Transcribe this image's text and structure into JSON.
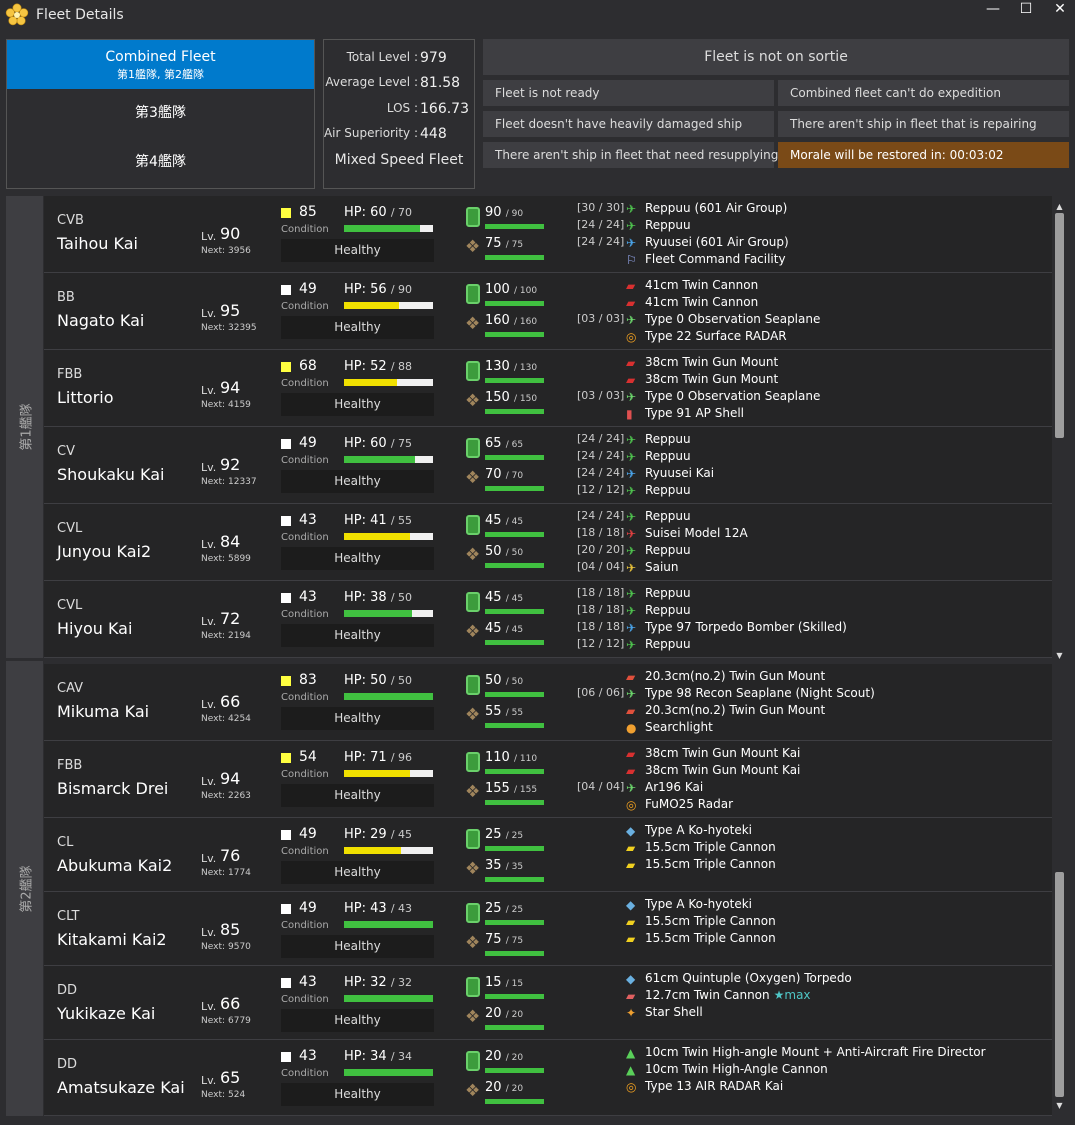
{
  "window": {
    "title": "Fleet Details"
  },
  "fleet_tabs": [
    {
      "label": "Combined Fleet",
      "sub": "第1艦隊, 第2艦隊"
    },
    {
      "label": "第3艦隊"
    },
    {
      "label": "第4艦隊"
    }
  ],
  "stats": {
    "total_level_label": "Total Level :",
    "total_level": "979",
    "avg_level_label": "Average Level :",
    "avg_level": "81.58",
    "los_label": "LOS :",
    "los": "166.73",
    "air_label": "Air Superiority :",
    "air": "448",
    "speed": "Mixed Speed Fleet"
  },
  "status": {
    "sortie": "Fleet is not on sortie",
    "badges": [
      "Fleet is not ready",
      "Combined fleet can't do expedition",
      "Fleet doesn't have heavily damaged ship",
      "There aren't ship in fleet that is repairing",
      "There aren't ship in fleet that need resupplying",
      "Morale will be restored in: 00:03:02"
    ]
  },
  "fleet_labels": [
    "第1艦隊",
    "第2艦隊"
  ],
  "labels": {
    "lv": "Lv.",
    "next": "Next:",
    "condition": "Condition",
    "hp": "HP:"
  },
  "colors": {
    "accent": "#007acc",
    "hp_green": "#40c040",
    "hp_yellow": "#f0e000",
    "morale_high": "#ffff40",
    "morale_normal": "#ffffff",
    "warn": "#7a4a17"
  },
  "ships": [
    {
      "type": "CVB",
      "name": "Taihou Kai",
      "lv": "90",
      "next": "3956",
      "morale": "85",
      "morale_color": "#ffff40",
      "hp": "60",
      "hp_max": "70",
      "hp_pct": 0.857,
      "hp_color": "#40c040",
      "status": "Healthy",
      "fuel": "90",
      "fuel_max": "90",
      "ammo": "75",
      "ammo_max": "75",
      "equip": [
        {
          "slot": "[30 / 30]",
          "icon": "fighter-icon",
          "name": "Reppuu (601 Air Group)"
        },
        {
          "slot": "[24 / 24]",
          "icon": "fighter-icon",
          "name": "Reppuu"
        },
        {
          "slot": "[24 / 24]",
          "icon": "torpedo-bomber-icon",
          "name": "Ryuusei (601 Air Group)"
        },
        {
          "slot": "",
          "icon": "command-facility-icon",
          "name": "Fleet Command Facility"
        }
      ]
    },
    {
      "type": "BB",
      "name": "Nagato Kai",
      "lv": "95",
      "next": "32395",
      "morale": "49",
      "morale_color": "#ffffff",
      "hp": "56",
      "hp_max": "90",
      "hp_pct": 0.622,
      "hp_color": "#f0e000",
      "status": "Healthy",
      "fuel": "100",
      "fuel_max": "100",
      "ammo": "160",
      "ammo_max": "160",
      "equip": [
        {
          "slot": "",
          "icon": "main-gun-icon",
          "name": "41cm Twin Cannon"
        },
        {
          "slot": "",
          "icon": "main-gun-icon",
          "name": "41cm Twin Cannon"
        },
        {
          "slot": "[03 / 03]",
          "icon": "seaplane-icon",
          "name": "Type 0 Observation Seaplane"
        },
        {
          "slot": "",
          "icon": "radar-icon",
          "name": "Type 22 Surface RADAR"
        }
      ]
    },
    {
      "type": "FBB",
      "name": "Littorio",
      "lv": "94",
      "next": "4159",
      "morale": "68",
      "morale_color": "#ffff40",
      "hp": "52",
      "hp_max": "88",
      "hp_pct": 0.591,
      "hp_color": "#f0e000",
      "status": "Healthy",
      "fuel": "130",
      "fuel_max": "130",
      "ammo": "150",
      "ammo_max": "150",
      "equip": [
        {
          "slot": "",
          "icon": "main-gun-icon",
          "name": "38cm Twin Gun Mount"
        },
        {
          "slot": "",
          "icon": "main-gun-icon",
          "name": "38cm Twin Gun Mount"
        },
        {
          "slot": "[03 / 03]",
          "icon": "seaplane-icon",
          "name": "Type 0 Observation Seaplane"
        },
        {
          "slot": "",
          "icon": "ap-shell-icon",
          "name": "Type 91 AP Shell"
        }
      ]
    },
    {
      "type": "CV",
      "name": "Shoukaku Kai",
      "lv": "92",
      "next": "12337",
      "morale": "49",
      "morale_color": "#ffffff",
      "hp": "60",
      "hp_max": "75",
      "hp_pct": 0.8,
      "hp_color": "#40c040",
      "status": "Healthy",
      "fuel": "65",
      "fuel_max": "65",
      "ammo": "70",
      "ammo_max": "70",
      "equip": [
        {
          "slot": "[24 / 24]",
          "icon": "fighter-icon",
          "name": "Reppuu"
        },
        {
          "slot": "[24 / 24]",
          "icon": "fighter-icon",
          "name": "Reppuu"
        },
        {
          "slot": "[24 / 24]",
          "icon": "torpedo-bomber-icon",
          "name": "Ryuusei Kai"
        },
        {
          "slot": "[12 / 12]",
          "icon": "fighter-icon",
          "name": "Reppuu"
        }
      ]
    },
    {
      "type": "CVL",
      "name": "Junyou Kai2",
      "lv": "84",
      "next": "5899",
      "morale": "43",
      "morale_color": "#ffffff",
      "hp": "41",
      "hp_max": "55",
      "hp_pct": 0.745,
      "hp_color": "#f0e000",
      "status": "Healthy",
      "fuel": "45",
      "fuel_max": "45",
      "ammo": "50",
      "ammo_max": "50",
      "equip": [
        {
          "slot": "[24 / 24]",
          "icon": "fighter-icon",
          "name": "Reppuu"
        },
        {
          "slot": "[18 / 18]",
          "icon": "dive-bomber-icon",
          "name": "Suisei Model 12A"
        },
        {
          "slot": "[20 / 20]",
          "icon": "fighter-icon",
          "name": "Reppuu"
        },
        {
          "slot": "[04 / 04]",
          "icon": "recon-plane-icon",
          "name": "Saiun"
        }
      ]
    },
    {
      "type": "CVL",
      "name": "Hiyou Kai",
      "lv": "72",
      "next": "2194",
      "morale": "43",
      "morale_color": "#ffffff",
      "hp": "38",
      "hp_max": "50",
      "hp_pct": 0.76,
      "hp_color": "#40c040",
      "status": "Healthy",
      "fuel": "45",
      "fuel_max": "45",
      "ammo": "45",
      "ammo_max": "45",
      "equip": [
        {
          "slot": "[18 / 18]",
          "icon": "fighter-icon",
          "name": "Reppuu"
        },
        {
          "slot": "[18 / 18]",
          "icon": "fighter-icon",
          "name": "Reppuu"
        },
        {
          "slot": "[18 / 18]",
          "icon": "torpedo-bomber-icon",
          "name": "Type 97 Torpedo Bomber (Skilled)"
        },
        {
          "slot": "[12 / 12]",
          "icon": "fighter-icon",
          "name": "Reppuu"
        }
      ]
    },
    {
      "type": "CAV",
      "name": "Mikuma Kai",
      "lv": "66",
      "next": "4254",
      "morale": "83",
      "morale_color": "#ffff40",
      "hp": "50",
      "hp_max": "50",
      "hp_pct": 1.0,
      "hp_color": "#40c040",
      "status": "Healthy",
      "fuel": "50",
      "fuel_max": "50",
      "ammo": "55",
      "ammo_max": "55",
      "equip": [
        {
          "slot": "",
          "icon": "medium-gun-icon",
          "name": "20.3cm(no.2) Twin Gun Mount"
        },
        {
          "slot": "[06 / 06]",
          "icon": "seaplane-icon",
          "name": "Type 98 Recon Seaplane (Night Scout)"
        },
        {
          "slot": "",
          "icon": "medium-gun-icon",
          "name": "20.3cm(no.2) Twin Gun Mount"
        },
        {
          "slot": "",
          "icon": "searchlight-icon",
          "name": "Searchlight"
        }
      ]
    },
    {
      "type": "FBB",
      "name": "Bismarck Drei",
      "lv": "94",
      "next": "2263",
      "morale": "54",
      "morale_color": "#ffff40",
      "hp": "71",
      "hp_max": "96",
      "hp_pct": 0.74,
      "hp_color": "#f0e000",
      "status": "Healthy",
      "fuel": "110",
      "fuel_max": "110",
      "ammo": "155",
      "ammo_max": "155",
      "equip": [
        {
          "slot": "",
          "icon": "main-gun-icon",
          "name": "38cm Twin Gun Mount Kai"
        },
        {
          "slot": "",
          "icon": "main-gun-icon",
          "name": "38cm Twin Gun Mount Kai"
        },
        {
          "slot": "[04 / 04]",
          "icon": "seaplane-icon",
          "name": "Ar196 Kai"
        },
        {
          "slot": "",
          "icon": "radar-icon",
          "name": "FuMO25 Radar"
        }
      ]
    },
    {
      "type": "CL",
      "name": "Abukuma Kai2",
      "lv": "76",
      "next": "1774",
      "morale": "49",
      "morale_color": "#ffffff",
      "hp": "29",
      "hp_max": "45",
      "hp_pct": 0.644,
      "hp_color": "#f0e000",
      "status": "Healthy",
      "fuel": "25",
      "fuel_max": "25",
      "ammo": "35",
      "ammo_max": "35",
      "equip": [
        {
          "slot": "",
          "icon": "midget-sub-icon",
          "name": "Type A Ko-hyoteki"
        },
        {
          "slot": "",
          "icon": "secondary-gun-icon",
          "name": "15.5cm Triple Cannon"
        },
        {
          "slot": "",
          "icon": "secondary-gun-icon",
          "name": "15.5cm Triple Cannon"
        }
      ]
    },
    {
      "type": "CLT",
      "name": "Kitakami Kai2",
      "lv": "85",
      "next": "9570",
      "morale": "49",
      "morale_color": "#ffffff",
      "hp": "43",
      "hp_max": "43",
      "hp_pct": 1.0,
      "hp_color": "#40c040",
      "status": "Healthy",
      "fuel": "25",
      "fuel_max": "25",
      "ammo": "75",
      "ammo_max": "75",
      "equip": [
        {
          "slot": "",
          "icon": "midget-sub-icon",
          "name": "Type A Ko-hyoteki"
        },
        {
          "slot": "",
          "icon": "secondary-gun-icon",
          "name": "15.5cm Triple Cannon"
        },
        {
          "slot": "",
          "icon": "secondary-gun-icon",
          "name": "15.5cm Triple Cannon"
        }
      ]
    },
    {
      "type": "DD",
      "name": "Yukikaze Kai",
      "lv": "66",
      "next": "6779",
      "morale": "43",
      "morale_color": "#ffffff",
      "hp": "32",
      "hp_max": "32",
      "hp_pct": 1.0,
      "hp_color": "#40c040",
      "status": "Healthy",
      "fuel": "15",
      "fuel_max": "15",
      "ammo": "20",
      "ammo_max": "20",
      "equip": [
        {
          "slot": "",
          "icon": "torpedo-icon",
          "name": "61cm Quintuple (Oxygen) Torpedo"
        },
        {
          "slot": "",
          "icon": "small-gun-icon",
          "name": "12.7cm Twin Cannon",
          "star": "★max"
        },
        {
          "slot": "",
          "icon": "star-shell-icon",
          "name": "Star Shell"
        }
      ]
    },
    {
      "type": "DD",
      "name": "Amatsukaze Kai",
      "lv": "65",
      "next": "524",
      "morale": "43",
      "morale_color": "#ffffff",
      "hp": "34",
      "hp_max": "34",
      "hp_pct": 1.0,
      "hp_color": "#40c040",
      "status": "Healthy",
      "fuel": "20",
      "fuel_max": "20",
      "ammo": "20",
      "ammo_max": "20",
      "equip": [
        {
          "slot": "",
          "icon": "aa-gun-icon",
          "name": "10cm Twin High-angle Mount + Anti-Aircraft Fire Director"
        },
        {
          "slot": "",
          "icon": "aa-gun-icon",
          "name": "10cm Twin High-Angle Cannon"
        },
        {
          "slot": "",
          "icon": "radar-icon",
          "name": "Type 13 AIR RADAR Kai"
        }
      ]
    }
  ]
}
